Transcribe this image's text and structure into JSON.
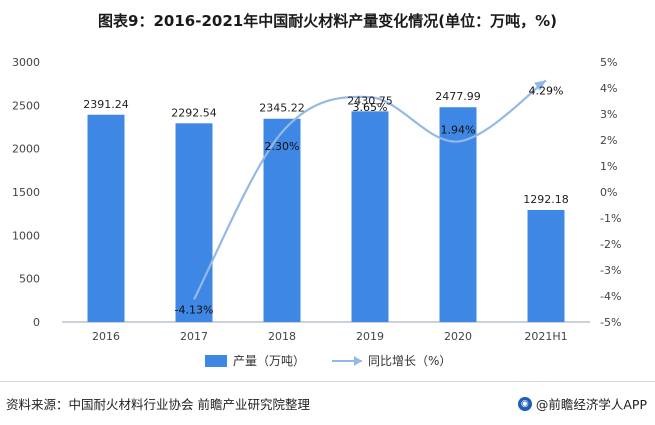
{
  "title": "图表9：2016-2021年中国耐火材料产量变化情况(单位：万吨，%)",
  "legend": {
    "bar_label": "产量（万吨）",
    "line_label": "同比增长（%）"
  },
  "footer": {
    "source": "资料来源：中国耐火材料行业协会 前瞻产业研究院整理",
    "brand": "@前瞻经济学人APP"
  },
  "colors": {
    "bar": "#3f87e4",
    "line": "#94b9e6",
    "axis": "#9aa5b1"
  },
  "chart_data": {
    "type": "bar",
    "categories": [
      "2016",
      "2017",
      "2018",
      "2019",
      "2020",
      "2021H1"
    ],
    "series": [
      {
        "name": "产量（万吨）",
        "type": "bar",
        "axis": "left",
        "values": [
          2391.24,
          2292.54,
          2345.22,
          2430.75,
          2477.99,
          1292.18
        ],
        "labels": [
          "2391.24",
          "2292.54",
          "2345.22",
          "2430.75",
          "2477.99",
          "1292.18"
        ]
      },
      {
        "name": "同比增长（%）",
        "type": "line",
        "axis": "right",
        "values": [
          null,
          -4.13,
          2.3,
          3.65,
          1.94,
          4.29
        ],
        "labels": [
          "",
          "-4.13%",
          "2.30%",
          "3.65%",
          "1.94%",
          "4.29%"
        ]
      }
    ],
    "ylim_left": [
      0,
      3000
    ],
    "yticks_left": [
      "0",
      "500",
      "1000",
      "1500",
      "2000",
      "2500",
      "3000"
    ],
    "ylim_right": [
      -5,
      5
    ],
    "yticks_right": [
      "-5%",
      "-4%",
      "-3%",
      "-2%",
      "-1%",
      "0%",
      "1%",
      "2%",
      "3%",
      "4%",
      "5%"
    ],
    "grid": false,
    "legend_position": "bottom"
  }
}
